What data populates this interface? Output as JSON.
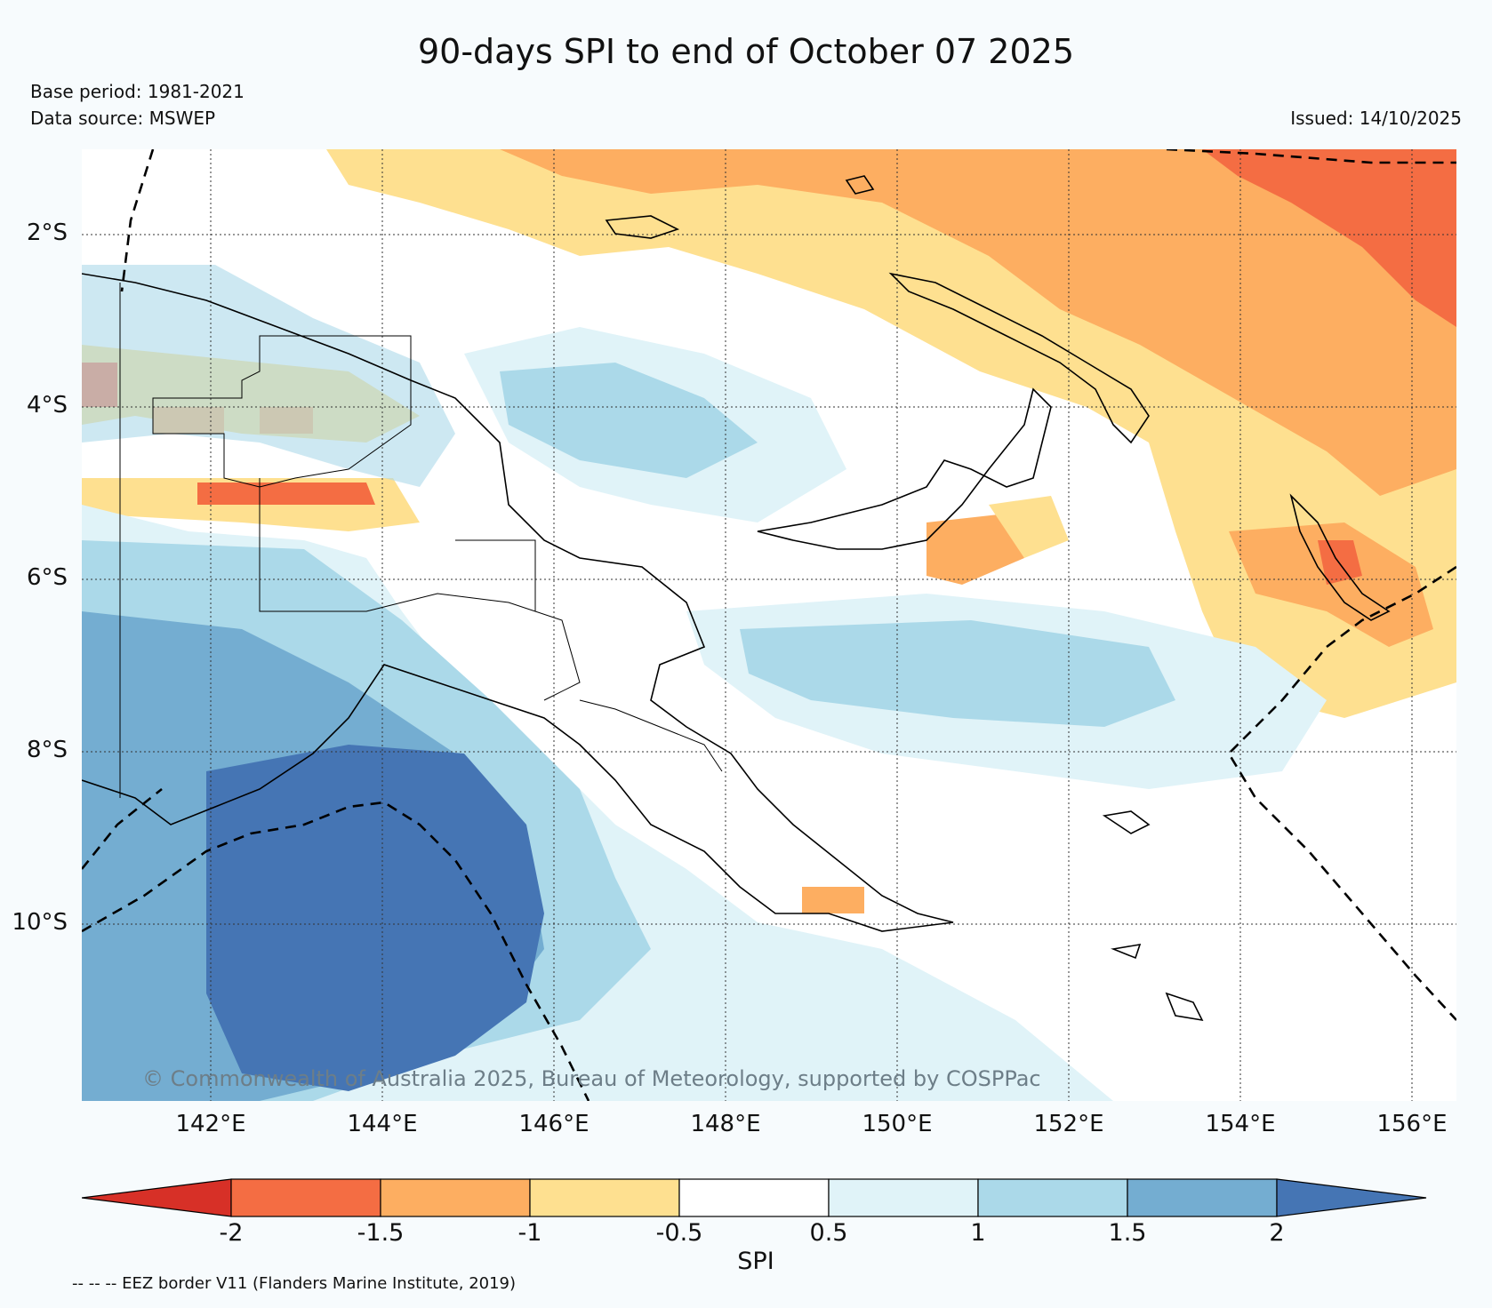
{
  "title": "90-days SPI to end of October 07 2025",
  "base_period": "Base period: 1981-2021",
  "data_source": "Data source: MSWEP",
  "issued": "Issued: 14/10/2025",
  "copyright": "© Commonwealth of Australia 2025, Bureau of Meteorology, supported by COSPPac",
  "lat_labels": [
    "2°S",
    "4°S",
    "6°S",
    "8°S",
    "10°S"
  ],
  "lon_labels": [
    "142°E",
    "144°E",
    "146°E",
    "148°E",
    "150°E",
    "152°E",
    "154°E",
    "156°E"
  ],
  "colorbar": {
    "label": "SPI",
    "ticks": [
      "-2",
      "-1.5",
      "-1",
      "-0.5",
      "0.5",
      "1",
      "1.5",
      "2"
    ],
    "colors": {
      "extreme_dry": "#d73027",
      "very_dry": "#f46d43",
      "dry": "#fdae61",
      "mild_dry": "#fee090",
      "normal": "#ffffff",
      "mild_wet": "#e0f3f8",
      "wet": "#abd9e9",
      "very_wet": "#74add1",
      "extreme_wet": "#4575b4"
    }
  },
  "legend_note": "-- -- -- EEZ border V11 (Flanders Marine Institute, 2019)",
  "map_extent": {
    "lon_min": 140.5,
    "lon_max": 156.5,
    "lat_min": -12.0,
    "lat_max": -1.0
  }
}
